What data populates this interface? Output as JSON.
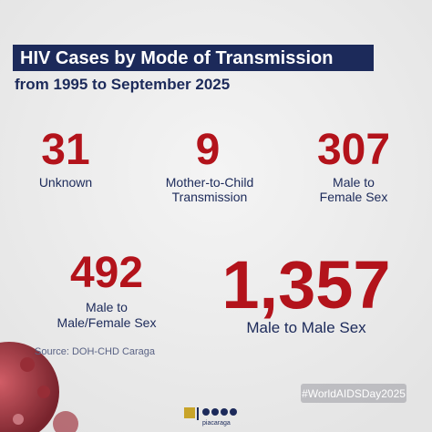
{
  "header": {
    "title": "HIV Cases by Mode of Transmission",
    "subtitle": "from 1995 to September 2025"
  },
  "stats": [
    {
      "value": 31,
      "label": [
        "Unknown"
      ]
    },
    {
      "value": 9,
      "label": [
        "Mother-to-Child",
        "Transmission"
      ]
    },
    {
      "value": 307,
      "label": [
        "Male to",
        "Female Sex"
      ]
    },
    {
      "value": 492,
      "label": [
        "Male to",
        "Male/Female Sex"
      ]
    },
    {
      "value": {
        "value": 1357,
        "label": "1,357"
      },
      "label": [
        "Male to Male Sex"
      ]
    }
  ],
  "source": "Source: DOH-CHD Caraga",
  "hashtag": "#WorldAIDSDay2025",
  "logo": "piacaraga"
}
